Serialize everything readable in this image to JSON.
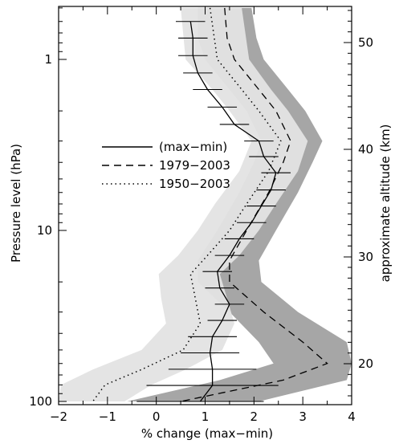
{
  "chart_data": {
    "type": "line",
    "xlabel": "% change (max−min)",
    "ylabel": "Pressure level (hPa)",
    "y2label": "approximate altitude (km)",
    "xlim": [
      -2,
      4
    ],
    "ylim_hpa": [
      100,
      0.5
    ],
    "y_scale": "log",
    "x_ticks": [
      "−2",
      "−1",
      "0",
      "1",
      "2",
      "3",
      "4"
    ],
    "x_tick_values": [
      -2,
      -1,
      0,
      1,
      2,
      3,
      4
    ],
    "y_ticks": [
      "1",
      "10",
      "100"
    ],
    "y_tick_values": [
      1,
      10,
      100
    ],
    "y2_ticks": [
      "20",
      "30",
      "40",
      "50"
    ],
    "y2_tick_values_km": [
      20,
      30,
      40,
      50
    ],
    "legend": [
      {
        "label": "(max−min)",
        "style": "solid"
      },
      {
        "label": "1979−2003",
        "style": "dashed"
      },
      {
        "label": "1950−2003",
        "style": "dotted"
      }
    ],
    "legend_position": "middle-left",
    "colors": {
      "band_1979_2003": "#a6a6a6",
      "band_1950_2003": "#e3e3e3",
      "lines": "#000000"
    },
    "series": [
      {
        "name": "(max−min)",
        "style": "solid",
        "points": [
          {
            "p": 0.6,
            "x": 0.7,
            "err": 0.3
          },
          {
            "p": 0.75,
            "x": 0.75,
            "err": 0.3
          },
          {
            "p": 0.95,
            "x": 0.75,
            "err": 0.3
          },
          {
            "p": 1.2,
            "x": 0.85,
            "err": 0.3
          },
          {
            "p": 1.5,
            "x": 1.05,
            "err": 0.3
          },
          {
            "p": 1.9,
            "x": 1.35,
            "err": 0.3
          },
          {
            "p": 2.4,
            "x": 1.6,
            "err": 0.3
          },
          {
            "p": 3.0,
            "x": 2.1,
            "err": 0.3
          },
          {
            "p": 3.7,
            "x": 2.2,
            "err": 0.3
          },
          {
            "p": 4.6,
            "x": 2.45,
            "err": 0.3
          },
          {
            "p": 5.8,
            "x": 2.35,
            "err": 0.3
          },
          {
            "p": 7.2,
            "x": 2.15,
            "err": 0.3
          },
          {
            "p": 9.0,
            "x": 1.95,
            "err": 0.3
          },
          {
            "p": 11.2,
            "x": 1.7,
            "err": 0.3
          },
          {
            "p": 14.0,
            "x": 1.5,
            "err": 0.3
          },
          {
            "p": 17.4,
            "x": 1.25,
            "err": 0.3
          },
          {
            "p": 21.7,
            "x": 1.3,
            "err": 0.3
          },
          {
            "p": 27.0,
            "x": 1.5,
            "err": 0.3
          },
          {
            "p": 33.6,
            "x": 1.35,
            "err": 0.3
          },
          {
            "p": 41.8,
            "x": 1.15,
            "err": 0.5
          },
          {
            "p": 52.0,
            "x": 1.1,
            "err": 0.6
          },
          {
            "p": 64.8,
            "x": 1.15,
            "err": 0.9
          },
          {
            "p": 80.6,
            "x": 1.15,
            "err": 1.35
          },
          {
            "p": 100.0,
            "x": 0.9,
            "err": 1.3
          }
        ]
      },
      {
        "name": "1979−2003",
        "style": "dashed",
        "points": [
          {
            "p": 0.5,
            "x": 1.4,
            "lo": 0.85,
            "hi": 1.95
          },
          {
            "p": 0.75,
            "x": 1.45,
            "lo": 0.85,
            "hi": 2.05
          },
          {
            "p": 1.0,
            "x": 1.6,
            "lo": 1.0,
            "hi": 2.2
          },
          {
            "p": 1.5,
            "x": 2.1,
            "lo": 1.5,
            "hi": 2.7
          },
          {
            "p": 2.0,
            "x": 2.45,
            "lo": 1.85,
            "hi": 3.05
          },
          {
            "p": 3.0,
            "x": 2.75,
            "lo": 2.15,
            "hi": 3.4
          },
          {
            "p": 4.0,
            "x": 2.6,
            "lo": 2.0,
            "hi": 3.2
          },
          {
            "p": 6.0,
            "x": 2.3,
            "lo": 1.7,
            "hi": 2.9
          },
          {
            "p": 10.0,
            "x": 1.85,
            "lo": 1.25,
            "hi": 2.45
          },
          {
            "p": 15.0,
            "x": 1.5,
            "lo": 0.85,
            "hi": 2.1
          },
          {
            "p": 20.0,
            "x": 1.5,
            "lo": 0.85,
            "hi": 2.15
          },
          {
            "p": 30.0,
            "x": 2.2,
            "lo": 1.5,
            "hi": 2.9
          },
          {
            "p": 45.0,
            "x": 3.0,
            "lo": 2.1,
            "hi": 3.9
          },
          {
            "p": 60.0,
            "x": 3.5,
            "lo": 2.4,
            "hi": 4.0
          },
          {
            "p": 75.0,
            "x": 2.6,
            "lo": 1.3,
            "hi": 3.9
          },
          {
            "p": 100.0,
            "x": 0.5,
            "lo": -0.6,
            "hi": 2.1
          }
        ]
      },
      {
        "name": "1950−2003",
        "style": "dotted",
        "points": [
          {
            "p": 0.5,
            "x": 1.1,
            "lo": 0.5,
            "hi": 1.75
          },
          {
            "p": 1.0,
            "x": 1.25,
            "lo": 0.6,
            "hi": 1.9
          },
          {
            "p": 1.5,
            "x": 1.75,
            "lo": 1.15,
            "hi": 2.35
          },
          {
            "p": 2.0,
            "x": 2.1,
            "lo": 1.5,
            "hi": 2.7
          },
          {
            "p": 3.0,
            "x": 2.55,
            "lo": 1.95,
            "hi": 3.1
          },
          {
            "p": 4.5,
            "x": 2.3,
            "lo": 1.7,
            "hi": 2.9
          },
          {
            "p": 7.0,
            "x": 1.85,
            "lo": 1.2,
            "hi": 2.45
          },
          {
            "p": 10.0,
            "x": 1.5,
            "lo": 0.85,
            "hi": 2.1
          },
          {
            "p": 14.0,
            "x": 1.05,
            "lo": 0.45,
            "hi": 1.7
          },
          {
            "p": 18.0,
            "x": 0.7,
            "lo": 0.05,
            "hi": 1.3
          },
          {
            "p": 25.0,
            "x": 0.8,
            "lo": 0.1,
            "hi": 1.45
          },
          {
            "p": 35.0,
            "x": 0.9,
            "lo": 0.2,
            "hi": 1.6
          },
          {
            "p": 50.0,
            "x": 0.55,
            "lo": -0.3,
            "hi": 1.35
          },
          {
            "p": 65.0,
            "x": -0.3,
            "lo": -1.3,
            "hi": 0.6
          },
          {
            "p": 80.0,
            "x": -1.05,
            "lo": -1.95,
            "hi": -0.1
          },
          {
            "p": 100.0,
            "x": -1.3,
            "lo": -2.0,
            "hi": -0.65
          }
        ]
      }
    ]
  }
}
